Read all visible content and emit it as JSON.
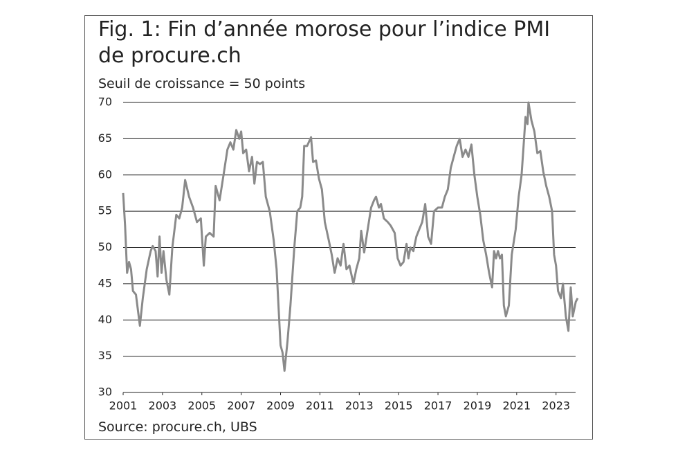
{
  "chart_data": {
    "type": "line",
    "title": "Fig. 1: Fin d’année morose pour l’indice PMI de procure.ch",
    "subtitle": "Seuil de croissance = 50 points",
    "source": "Source: procure.ch, UBS",
    "color": "#8a8a8a",
    "grid": true,
    "xlim": [
      2001,
      2024.1
    ],
    "xticks": [
      2001,
      2003,
      2005,
      2007,
      2009,
      2011,
      2013,
      2015,
      2017,
      2019,
      2021,
      2023
    ],
    "ylim": [
      30,
      70
    ],
    "yticks": [
      30,
      35,
      40,
      45,
      50,
      55,
      60,
      65,
      70
    ],
    "x": [
      2001.0,
      2001.1,
      2001.2,
      2001.3,
      2001.4,
      2001.5,
      2001.65,
      2001.85,
      2002.0,
      2002.2,
      2002.4,
      2002.5,
      2002.65,
      2002.75,
      2002.85,
      2002.95,
      2003.05,
      2003.2,
      2003.35,
      2003.5,
      2003.7,
      2003.85,
      2004.0,
      2004.15,
      2004.35,
      2004.55,
      2004.75,
      2004.95,
      2005.1,
      2005.2,
      2005.4,
      2005.6,
      2005.7,
      2005.9,
      2006.1,
      2006.3,
      2006.45,
      2006.6,
      2006.75,
      2006.9,
      2007.0,
      2007.1,
      2007.25,
      2007.4,
      2007.55,
      2007.67,
      2007.8,
      2007.95,
      2008.1,
      2008.25,
      2008.45,
      2008.65,
      2008.8,
      2009.0,
      2009.1,
      2009.2,
      2009.35,
      2009.5,
      2009.7,
      2009.85,
      2010.0,
      2010.1,
      2010.2,
      2010.35,
      2010.55,
      2010.65,
      2010.8,
      2010.95,
      2011.1,
      2011.25,
      2011.45,
      2011.6,
      2011.75,
      2011.9,
      2012.05,
      2012.2,
      2012.35,
      2012.5,
      2012.7,
      2012.85,
      2013.0,
      2013.1,
      2013.25,
      2013.4,
      2013.6,
      2013.75,
      2013.85,
      2014.0,
      2014.1,
      2014.25,
      2014.45,
      2014.6,
      2014.8,
      2014.95,
      2015.1,
      2015.25,
      2015.4,
      2015.5,
      2015.6,
      2015.75,
      2015.9,
      2016.05,
      2016.2,
      2016.35,
      2016.5,
      2016.65,
      2016.8,
      2017.0,
      2017.2,
      2017.35,
      2017.5,
      2017.65,
      2017.8,
      2017.95,
      2018.1,
      2018.25,
      2018.4,
      2018.55,
      2018.7,
      2018.85,
      2019.0,
      2019.15,
      2019.3,
      2019.45,
      2019.6,
      2019.75,
      2019.85,
      2019.95,
      2020.05,
      2020.15,
      2020.25,
      2020.35,
      2020.45,
      2020.6,
      2020.75,
      2020.95,
      2021.1,
      2021.25,
      2021.35,
      2021.45,
      2021.55,
      2021.6,
      2021.75,
      2021.9,
      2022.05,
      2022.2,
      2022.35,
      2022.5,
      2022.65,
      2022.8,
      2022.9,
      2023.0,
      2023.1,
      2023.25,
      2023.35,
      2023.5,
      2023.63,
      2023.75,
      2023.85,
      2024.0,
      2024.1
    ],
    "values": [
      57.5,
      53,
      46.5,
      48,
      47,
      44,
      43.5,
      39.2,
      43,
      47,
      49.5,
      50.2,
      49.5,
      46,
      51.5,
      46.5,
      49.5,
      45.5,
      43.5,
      50,
      54.5,
      54,
      55.5,
      59.3,
      57,
      55.5,
      53.5,
      54,
      47.5,
      51.5,
      52,
      51.5,
      58.5,
      56.5,
      60,
      63.5,
      64.5,
      63.5,
      66.2,
      65,
      66,
      63,
      63.5,
      60.5,
      62.5,
      58.8,
      61.8,
      61.5,
      61.8,
      57,
      55,
      51,
      47,
      36.5,
      35.5,
      33,
      37,
      42,
      50,
      55,
      55.5,
      57,
      64,
      64,
      65.2,
      61.8,
      62,
      59.5,
      58,
      53.5,
      51,
      49,
      46.5,
      48.5,
      47.5,
      50.5,
      47,
      47.5,
      45,
      47,
      48.5,
      52.3,
      49.3,
      52,
      55.5,
      56.5,
      57,
      55.5,
      56,
      54,
      53.5,
      53,
      52,
      48.5,
      47.5,
      48,
      50.5,
      48.5,
      50,
      49.5,
      51.5,
      52.5,
      53.5,
      56,
      51.5,
      50.5,
      55,
      55.5,
      55.5,
      57,
      58,
      61,
      62.5,
      64,
      65,
      62.5,
      63.5,
      62.5,
      64.2,
      60,
      57,
      54.5,
      51,
      49,
      46.5,
      44.5,
      49.5,
      48.5,
      49.5,
      48.5,
      49,
      42,
      40.5,
      42,
      49,
      52.5,
      57,
      60,
      64,
      68,
      67,
      70,
      67.5,
      66,
      63,
      63.3,
      60.5,
      58.5,
      57,
      55,
      49,
      47.5,
      44,
      43,
      45,
      40.5,
      38.5,
      44.5,
      40.5,
      42.5,
      43
    ]
  }
}
